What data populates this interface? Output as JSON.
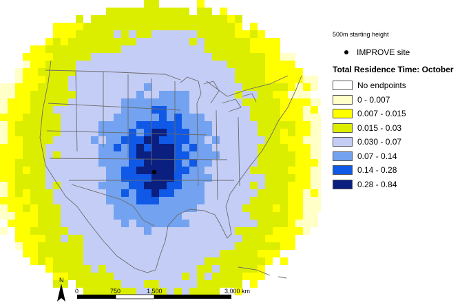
{
  "legend": {
    "subtitle": "500m starting height",
    "site_label": "IMPROVE site",
    "title": "Total Residence Time: October",
    "classes": [
      {
        "label": "No endpoints",
        "color": "#ffffff"
      },
      {
        "label": "0 - 0.007",
        "color": "#ffffc8"
      },
      {
        "label": "0.007 - 0.015",
        "color": "#ffff00"
      },
      {
        "label": "0.015 - 0.03",
        "color": "#dcee00"
      },
      {
        "label": "0.030 - 0.07",
        "color": "#c4cdf6"
      },
      {
        "label": "0.07 - 0.14",
        "color": "#73a2f0"
      },
      {
        "label": "0.14 - 0.28",
        "color": "#0f59e6"
      },
      {
        "label": "0.28 - 0.84",
        "color": "#0a1f80"
      }
    ]
  },
  "scalebar": {
    "north_label": "N",
    "ticks": [
      "0",
      "750",
      "1,500",
      "3,000 km"
    ]
  }
}
